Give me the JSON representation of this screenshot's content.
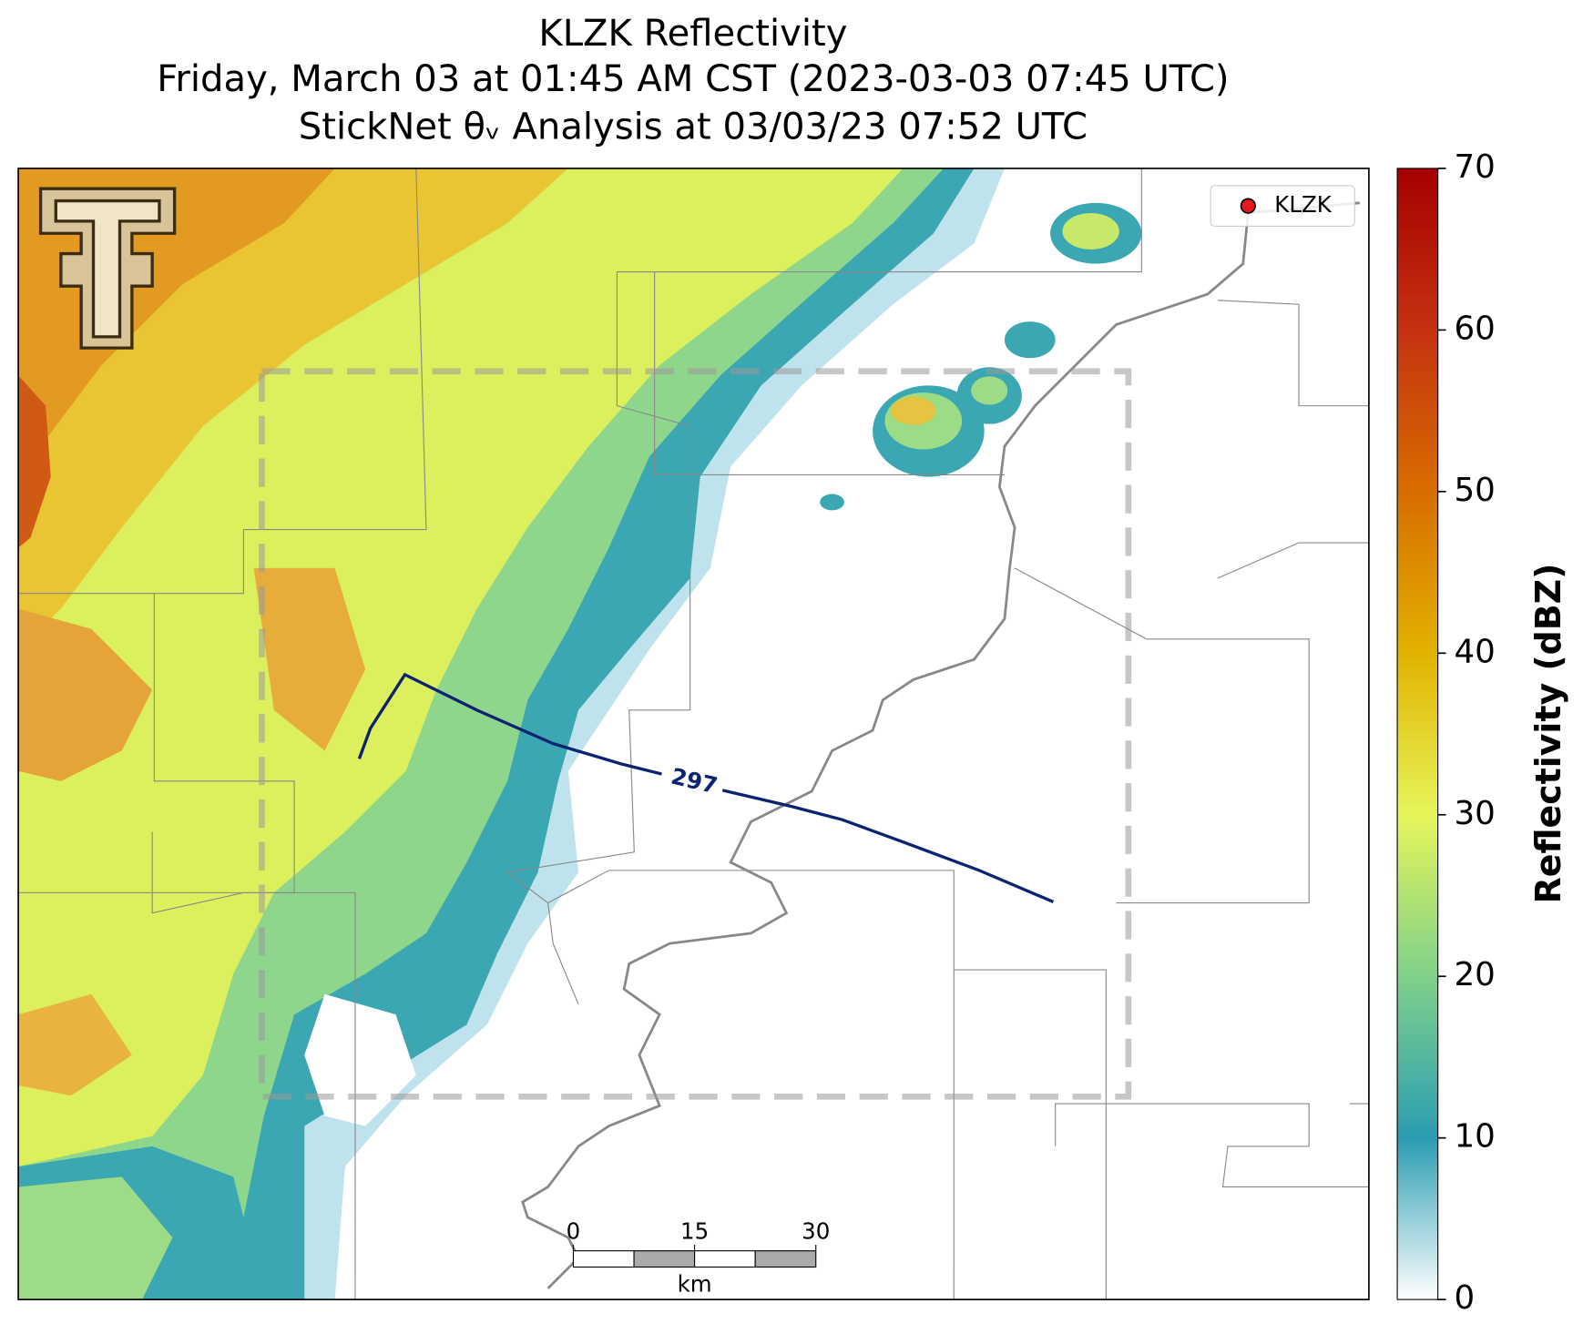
{
  "title_lines": [
    "KLZK Reflectivity",
    "Friday, March 03 at 01:45 AM CST (2023-03-03 07:45 UTC)",
    "StickNet θᵥ Analysis at 03/03/23 07:52 UTC"
  ],
  "legend": {
    "label": "KLZK",
    "color": "#e31a1c"
  },
  "colorbar": {
    "label": "Reflectivity (dBZ)",
    "lim": [
      0,
      70
    ],
    "ticks": [
      0,
      10,
      20,
      30,
      40,
      50,
      60,
      70
    ],
    "colors": [
      "#ffffff",
      "#2a9db2",
      "#7fd18a",
      "#e6f55a",
      "#e2b300",
      "#d86d00",
      "#c53210",
      "#a50000"
    ]
  },
  "contour": {
    "value": 297,
    "color": "#0a2472"
  },
  "scale_bar": {
    "ticks": [
      0,
      15,
      30
    ],
    "unit": "km"
  }
}
